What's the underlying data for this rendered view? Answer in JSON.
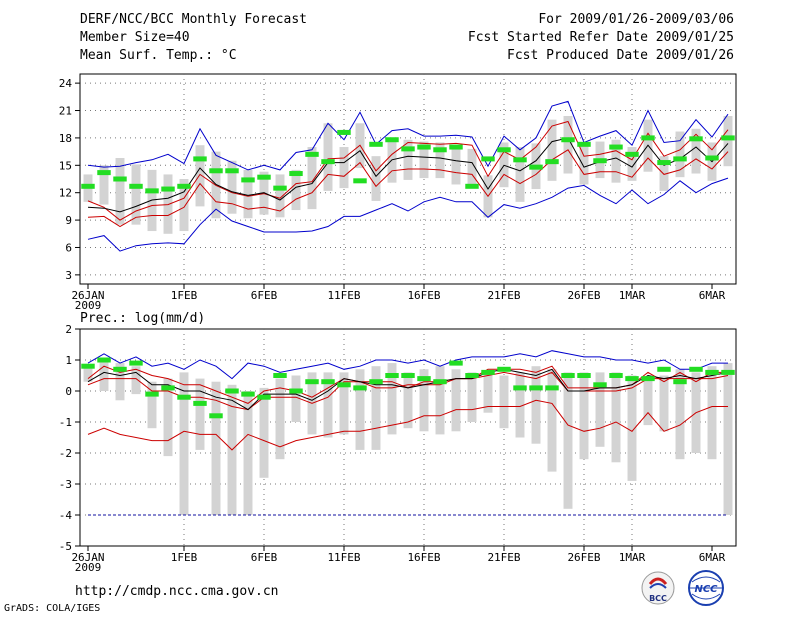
{
  "header": {
    "title": "DERF/NCC/BCC Monthly Forecast",
    "member": "Member Size=40",
    "var1": "Mean Surf. Temp.: °C",
    "period": "For 2009/01/26-2009/03/06",
    "start": "Fcst Started Refer Date 2009/01/25",
    "produced": "Fcst Produced Date 2009/01/26"
  },
  "footer": {
    "url": "http://cmdp.ncc.cma.gov.cn",
    "grads": "GrADS: COLA/IGES",
    "logo_bcc": "BCC",
    "logo_ncc": "NCC"
  },
  "colors": {
    "box": "#d3d3d3",
    "median": "#000000",
    "inner": "#cc0000",
    "outer": "#0000cc",
    "obs": "#22dd22",
    "grid": "#777777",
    "floor": "#1010a0"
  },
  "x_ticks": [
    "26JAN",
    "1FEB",
    "6FEB",
    "11FEB",
    "16FEB",
    "21FEB",
    "26FEB",
    "1MAR",
    "6MAR"
  ],
  "x_tick_days": [
    0,
    6,
    11,
    16,
    21,
    26,
    31,
    34,
    39
  ],
  "x_year": "2009",
  "chart_data": [
    {
      "type": "line",
      "title": "Mean Surf. Temp.: °C",
      "ylim": [
        2,
        25
      ],
      "yticks": [
        3,
        6,
        9,
        12,
        15,
        18,
        21,
        24
      ],
      "grid": true,
      "series": [
        {
          "name": "ensemble max",
          "values": [
            6.9,
            7.3,
            5.6,
            6.2,
            6.4,
            6.5,
            6.4,
            8.5,
            10.2,
            8.9,
            8.3,
            7.7,
            7.7,
            7.7,
            7.8,
            8.3,
            9.4,
            9.4,
            10.1,
            10.8,
            10.0,
            11.0,
            11.5,
            11.0,
            11.0,
            9.3,
            10.7,
            10.3,
            10.8,
            11.5,
            12.5,
            12.8,
            11.7,
            10.8,
            12.3,
            10.8,
            11.8,
            13.3,
            12.0,
            13.0,
            13.6
          ]
        },
        {
          "name": "ensemble min",
          "values": [
            15.0,
            14.8,
            14.9,
            15.3,
            15.6,
            16.2,
            15.2,
            19.0,
            16.1,
            15.3,
            14.5,
            15.0,
            14.5,
            16.4,
            16.7,
            19.6,
            17.8,
            20.8,
            17.3,
            18.8,
            19.0,
            18.2,
            18.2,
            18.3,
            18.1,
            14.9,
            18.2,
            16.7,
            18.0,
            21.5,
            22.0,
            17.5,
            18.2,
            18.8,
            17.2,
            21.0,
            17.5,
            17.7,
            20.0,
            18.1,
            20.6
          ]
        }
      ],
      "upper": [
        11.1,
        10.4,
        9.0,
        10.0,
        10.6,
        10.7,
        11.4,
        14.0,
        12.8,
        12.0,
        11.6,
        11.9,
        11.4,
        13.0,
        13.2,
        15.7,
        15.8,
        17.2,
        14.4,
        16.2,
        17.5,
        17.4,
        17.3,
        17.4,
        17.2,
        13.8,
        16.5,
        15.6,
        17.0,
        19.3,
        19.8,
        16.0,
        16.2,
        16.6,
        15.6,
        18.5,
        16.0,
        16.7,
        18.4,
        16.7,
        18.9
      ],
      "median": [
        10.4,
        10.3,
        9.9,
        10.5,
        11.2,
        11.4,
        12.1,
        14.7,
        12.9,
        12.1,
        11.7,
        12.0,
        11.2,
        12.6,
        13.0,
        15.3,
        15.3,
        16.6,
        13.8,
        15.6,
        16.0,
        15.9,
        15.8,
        15.5,
        15.3,
        12.4,
        15.0,
        14.4,
        15.5,
        17.6,
        18.0,
        14.8,
        15.4,
        15.8,
        14.8,
        17.2,
        15.0,
        15.7,
        17.0,
        15.4,
        17.4
      ],
      "lower": [
        9.3,
        9.4,
        8.3,
        9.3,
        9.5,
        9.5,
        10.4,
        13.0,
        11.0,
        10.8,
        10.2,
        10.4,
        10.0,
        11.3,
        12.0,
        14.0,
        13.8,
        15.3,
        12.7,
        14.4,
        14.6,
        14.6,
        14.5,
        14.2,
        14.0,
        11.6,
        14.0,
        13.0,
        14.0,
        15.6,
        16.7,
        14.0,
        14.3,
        14.3,
        13.7,
        15.8,
        14.0,
        14.5,
        15.7,
        14.6,
        16.5
      ],
      "box_low": [
        11.0,
        10.7,
        8.5,
        8.5,
        7.8,
        7.5,
        7.8,
        10.5,
        9.2,
        9.7,
        9.2,
        9.6,
        9.3,
        10.1,
        10.2,
        12.2,
        12.5,
        14.7,
        11.1,
        13.1,
        13.4,
        13.6,
        13.6,
        12.9,
        12.7,
        9.3,
        12.6,
        11.0,
        12.4,
        13.3,
        14.1,
        12.9,
        13.6,
        13.1,
        13.3,
        14.3,
        12.2,
        13.7,
        14.1,
        13.3,
        14.9
      ],
      "box_high": [
        14.0,
        15.0,
        15.8,
        15.1,
        14.5,
        14.0,
        13.5,
        17.2,
        16.5,
        15.5,
        14.5,
        14.3,
        14.0,
        14.5,
        17.0,
        19.6,
        17.0,
        19.6,
        16.0,
        17.7,
        17.8,
        17.6,
        17.5,
        16.9,
        16.8,
        13.9,
        17.5,
        17.0,
        17.4,
        20.0,
        20.4,
        17.3,
        17.6,
        17.8,
        17.0,
        20.0,
        16.0,
        18.7,
        19.0,
        17.5,
        20.4
      ],
      "obs": [
        12.7,
        14.2,
        13.5,
        12.7,
        12.2,
        12.4,
        12.7,
        15.7,
        14.4,
        14.4,
        13.4,
        13.7,
        12.5,
        14.1,
        16.2,
        15.4,
        18.6,
        13.3,
        17.3,
        17.8,
        16.8,
        17.0,
        16.7,
        17.0,
        12.7,
        15.7,
        16.7,
        15.6,
        14.8,
        15.4,
        17.8,
        17.3,
        15.5,
        17.0,
        16.2,
        18.0,
        15.3,
        15.7,
        17.9,
        15.8,
        18.0
      ]
    },
    {
      "type": "line",
      "title": "Prec.: log(mm/d)",
      "ylim": [
        -5,
        2
      ],
      "yticks": [
        -5,
        -4,
        -3,
        -2,
        -1,
        0,
        1,
        2
      ],
      "grid": true,
      "floor": -4,
      "series": [
        {
          "name": "ensemble max",
          "values": [
            0.9,
            1.2,
            0.9,
            1.1,
            0.8,
            0.9,
            0.7,
            1.0,
            0.8,
            0.4,
            0.9,
            0.8,
            0.6,
            0.7,
            0.8,
            0.9,
            0.7,
            0.8,
            1.0,
            1.0,
            0.9,
            1.0,
            0.8,
            1.0,
            1.1,
            1.1,
            1.1,
            1.2,
            1.1,
            1.3,
            1.2,
            1.1,
            1.1,
            1.0,
            1.0,
            0.9,
            1.0,
            0.7,
            0.7,
            0.9,
            0.9
          ]
        },
        {
          "name": "ensemble min",
          "values": [
            -1.4,
            -1.2,
            -1.4,
            -1.5,
            -1.6,
            -1.6,
            -1.3,
            -1.4,
            -1.4,
            -1.9,
            -1.4,
            -1.6,
            -1.8,
            -1.6,
            -1.5,
            -1.4,
            -1.3,
            -1.3,
            -1.2,
            -1.1,
            -1.0,
            -0.8,
            -0.8,
            -0.6,
            -0.6,
            -0.5,
            -0.5,
            -0.5,
            -0.3,
            -0.4,
            -1.1,
            -1.3,
            -1.2,
            -1.0,
            -1.3,
            -0.7,
            -1.3,
            -1.1,
            -0.7,
            -0.5,
            -0.5
          ]
        },
        {
          "name": "upper band",
          "values": [
            0.4,
            0.8,
            0.6,
            0.7,
            0.5,
            0.4,
            0.2,
            0.2,
            0.0,
            -0.2,
            -0.4,
            0.0,
            0.1,
            0.0,
            -0.2,
            0.1,
            0.4,
            0.3,
            0.3,
            0.3,
            0.1,
            0.3,
            0.3,
            0.4,
            0.4,
            0.7,
            0.7,
            0.7,
            0.6,
            0.8,
            0.1,
            0.1,
            0.1,
            0.1,
            0.2,
            0.6,
            0.3,
            0.6,
            0.3,
            0.6,
            0.6
          ]
        },
        {
          "name": "lower band",
          "values": [
            0.2,
            0.4,
            0.4,
            0.4,
            0.0,
            0.0,
            -0.2,
            -0.2,
            -0.3,
            -0.5,
            -0.6,
            -0.2,
            -0.2,
            -0.2,
            -0.4,
            -0.2,
            0.3,
            0.3,
            0.1,
            0.1,
            0.2,
            0.2,
            0.2,
            0.4,
            0.4,
            0.5,
            0.6,
            0.5,
            0.4,
            0.6,
            0.0,
            0.0,
            0.0,
            0.0,
            0.1,
            0.4,
            0.4,
            0.4,
            0.4,
            0.4,
            0.5
          ]
        }
      ],
      "median": [
        0.3,
        0.6,
        0.5,
        0.6,
        0.2,
        0.2,
        0.0,
        0.0,
        -0.2,
        -0.3,
        -0.6,
        -0.1,
        -0.1,
        -0.1,
        -0.3,
        0.0,
        0.4,
        0.3,
        0.2,
        0.2,
        0.1,
        0.2,
        0.3,
        0.4,
        0.4,
        0.6,
        0.7,
        0.6,
        0.5,
        0.7,
        0.0,
        0.0,
        0.1,
        0.1,
        0.2,
        0.5,
        0.4,
        0.5,
        0.4,
        0.5,
        0.6
      ],
      "box_low": [
        0.3,
        0.0,
        -0.3,
        -0.1,
        -1.2,
        -2.1,
        -4.0,
        -1.9,
        -4.0,
        -4.0,
        -4.0,
        -2.8,
        -2.2,
        -1.0,
        -1.4,
        -1.5,
        -1.4,
        -1.9,
        -1.9,
        -1.4,
        -1.2,
        -1.3,
        -1.4,
        -1.3,
        -1.0,
        -0.7,
        -1.2,
        -1.5,
        -1.7,
        -2.6,
        -3.8,
        -2.2,
        -1.8,
        -2.3,
        -2.9,
        -1.1,
        -1.3,
        -2.2,
        -2.0,
        -2.2,
        -4.0
      ],
      "box_high": [
        0.8,
        1.0,
        0.9,
        0.8,
        0.3,
        0.4,
        0.6,
        0.4,
        0.3,
        0.2,
        0.0,
        0.1,
        0.4,
        0.5,
        0.6,
        0.6,
        0.6,
        0.7,
        0.8,
        0.9,
        0.6,
        0.7,
        0.8,
        0.7,
        0.6,
        0.6,
        0.5,
        0.6,
        0.8,
        0.7,
        0.6,
        0.6,
        0.6,
        0.6,
        0.5,
        0.4,
        0.5,
        0.7,
        0.6,
        0.8,
        0.9
      ],
      "obs": [
        0.8,
        1.0,
        0.7,
        0.9,
        -0.1,
        0.1,
        -0.2,
        -0.4,
        -0.8,
        0.0,
        -0.1,
        -0.2,
        0.5,
        0.0,
        0.3,
        0.3,
        0.2,
        0.1,
        0.3,
        0.5,
        0.5,
        0.4,
        0.3,
        0.9,
        0.5,
        0.6,
        0.7,
        0.1,
        0.1,
        0.1,
        0.5,
        0.5,
        0.2,
        0.5,
        0.4,
        0.4,
        0.7,
        0.3,
        0.7,
        0.6,
        0.6
      ]
    }
  ]
}
